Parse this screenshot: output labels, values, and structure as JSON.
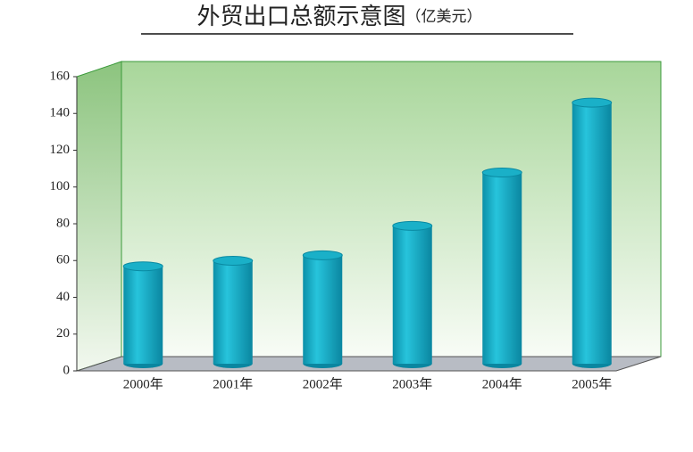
{
  "chart_data": {
    "type": "bar",
    "title": "外贸出口总额示意图",
    "subtitle": "（亿美元）",
    "categories": [
      "2000年",
      "2001年",
      "2002年",
      "2003年",
      "2004年",
      "2005年"
    ],
    "values": [
      53,
      56,
      59,
      75,
      104,
      142
    ],
    "color": "#1ab0c8",
    "ylim": [
      0,
      160
    ],
    "yticks": [
      0,
      20,
      40,
      60,
      80,
      100,
      120,
      140,
      160
    ]
  }
}
